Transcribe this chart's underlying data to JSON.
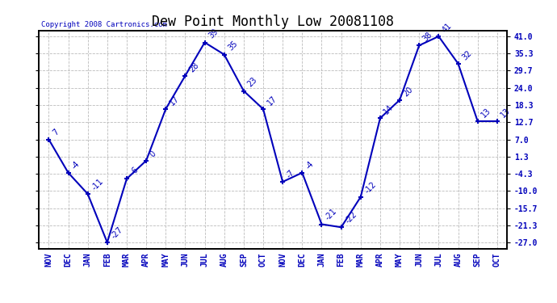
{
  "title": "Dew Point Monthly Low 20081108",
  "copyright": "Copyright 2008 Cartronics.com",
  "months": [
    "NOV",
    "DEC",
    "JAN",
    "FEB",
    "MAR",
    "APR",
    "MAY",
    "JUN",
    "JUL",
    "AUG",
    "SEP",
    "OCT",
    "NOV",
    "DEC",
    "JAN",
    "FEB",
    "MAR",
    "APR",
    "MAY",
    "JUN",
    "JUL",
    "AUG",
    "SEP",
    "OCT"
  ],
  "values": [
    7,
    -4,
    -11,
    -27,
    -6,
    0,
    17,
    28,
    39,
    35,
    23,
    17,
    -7,
    -4,
    -21,
    -22,
    -12,
    14,
    20,
    38,
    41,
    32,
    13,
    13
  ],
  "yticks": [
    -27.0,
    -21.3,
    -15.7,
    -10.0,
    -4.3,
    1.3,
    7.0,
    12.7,
    18.3,
    24.0,
    29.7,
    35.3,
    41.0
  ],
  "ylim_min": -29,
  "ylim_max": 43,
  "line_color": "#0000bb",
  "grid_color": "#bbbbbb",
  "bg_color": "#ffffff",
  "title_fontsize": 12,
  "annot_fontsize": 7,
  "tick_fontsize": 7,
  "copyright_fontsize": 6.5
}
